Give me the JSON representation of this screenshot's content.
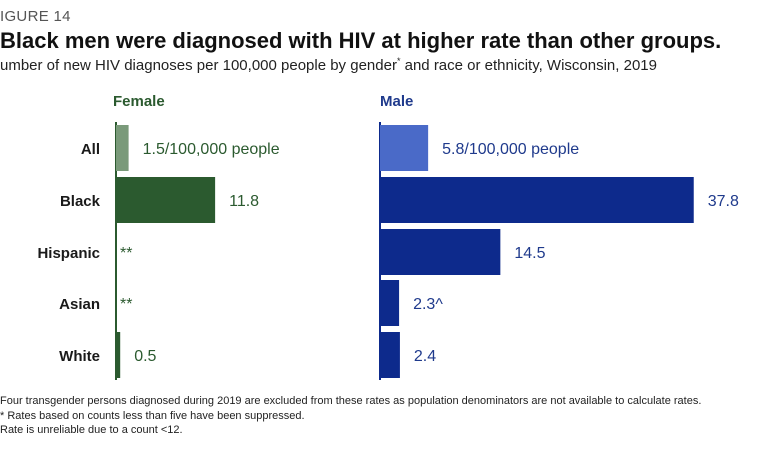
{
  "figure_label": "IGURE 14",
  "title": "Black men were diagnosed with HIV at higher rate than other groups.",
  "subtitle": {
    "before": "umber of new HIV diagnoses per 100,000 people by gender",
    "marker": "*",
    "after": " and race or ethnicity, Wisconsin, 2019"
  },
  "colors": {
    "female_dark": "#2b5a2f",
    "female_light": "#7a9a7a",
    "male_dark": "#0d2a8c",
    "male_light": "#4a6ac8",
    "female_text": "#2b5a2f",
    "male_text": "#1f3a8c"
  },
  "chart_data": {
    "type": "bar",
    "orientation": "horizontal",
    "categories": [
      "All",
      "Black",
      "Hispanic",
      "Asian",
      "White"
    ],
    "series": [
      {
        "name": "Female",
        "values": [
          1.5,
          11.8,
          null,
          null,
          0.5
        ],
        "labels": [
          "1.5/100,000 people",
          "11.8",
          "**",
          "**",
          "0.5"
        ]
      },
      {
        "name": "Male",
        "values": [
          5.8,
          37.8,
          14.5,
          2.3,
          2.4
        ],
        "labels": [
          "5.8/100,000 people",
          "37.8",
          "14.5",
          "2.3^",
          "2.4"
        ]
      }
    ],
    "highlight_category": "All",
    "legend": "panel-headers"
  },
  "notes": [
    "Four transgender persons diagnosed during 2019 are excluded from these rates as population denominators are not available to calculate rates.",
    "* Rates based on counts less than five have been suppressed.",
    "Rate is unreliable due to a count <12."
  ]
}
